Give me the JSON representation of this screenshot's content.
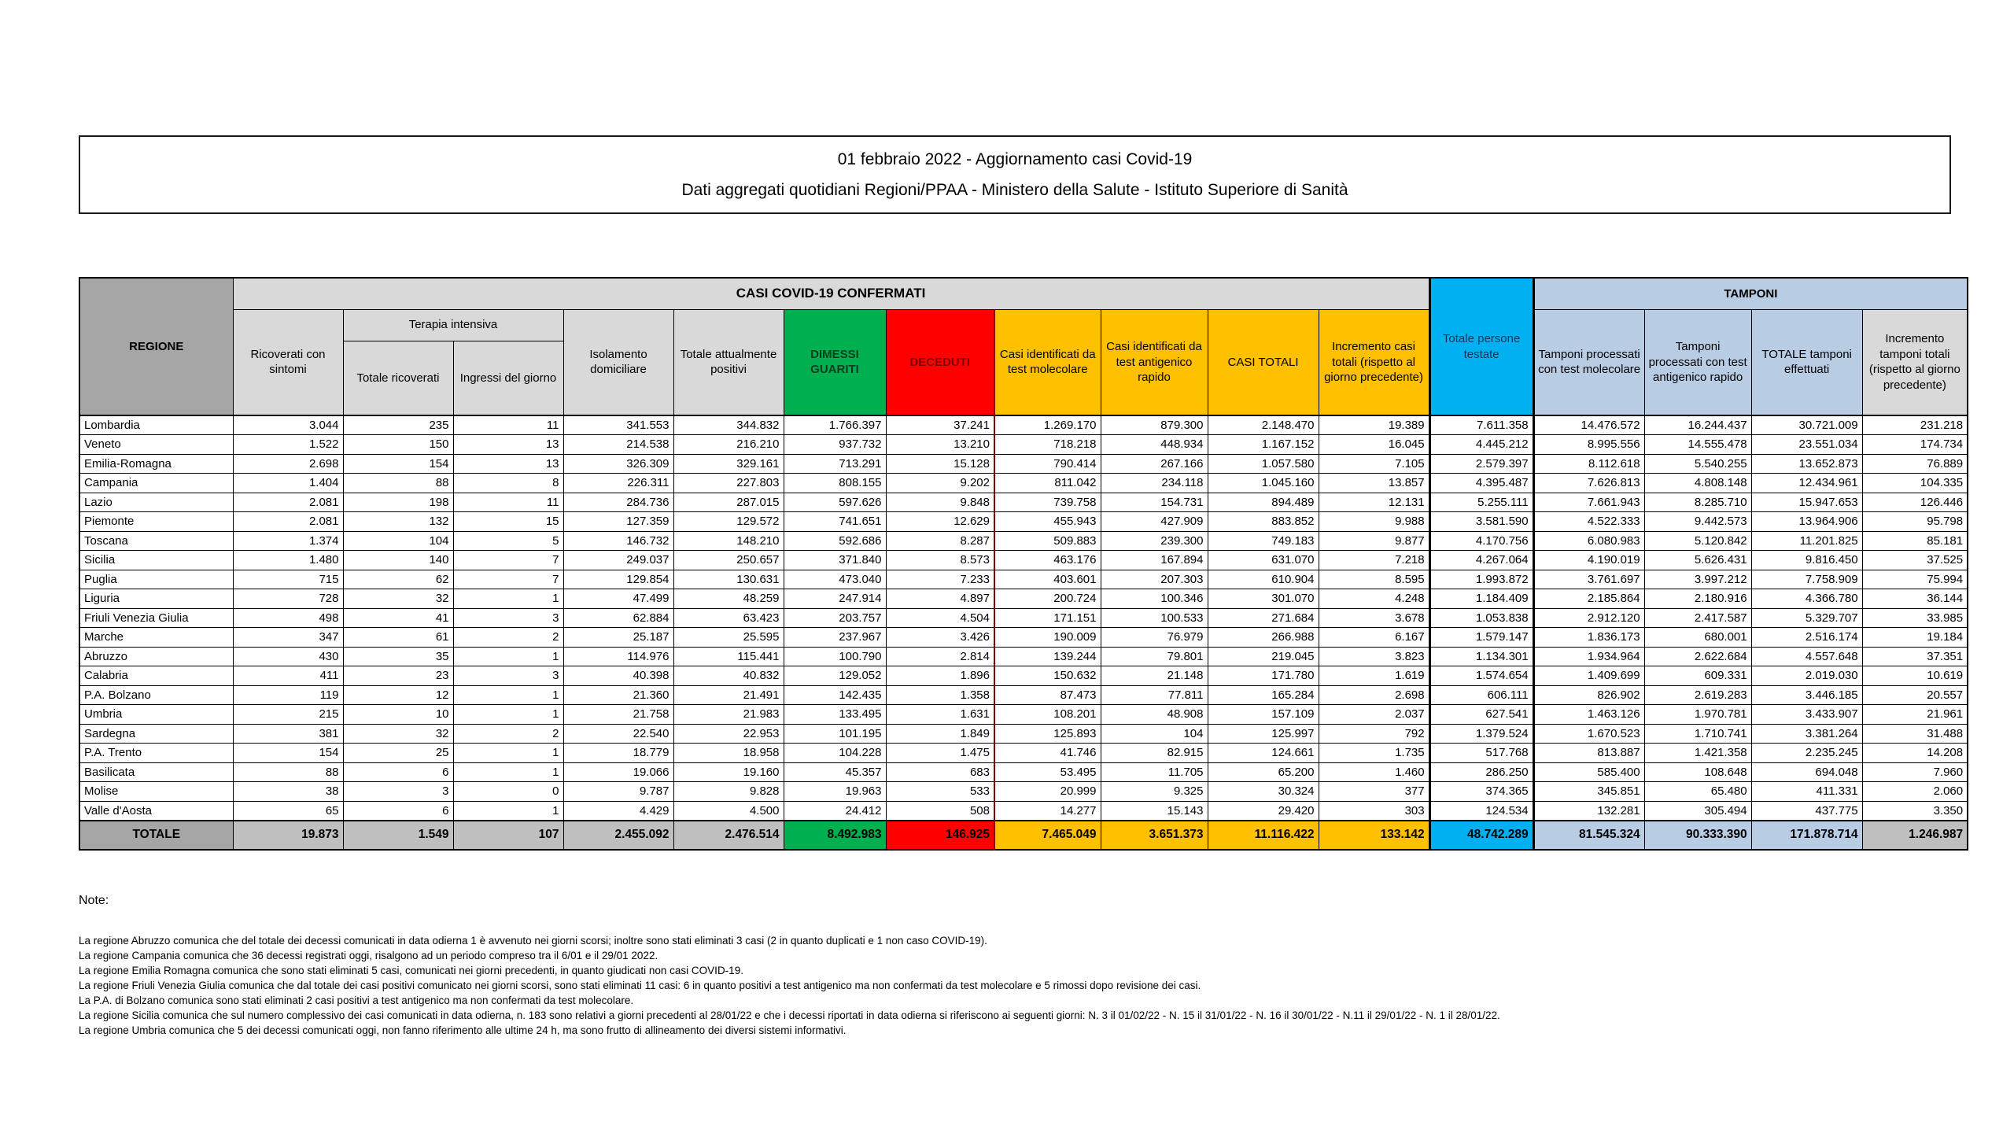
{
  "title": {
    "line1": "01 febbraio 2022 - Aggiornamento casi Covid-19",
    "line2": "Dati aggregati quotidiani Regioni/PPAA - Ministero della Salute - Istituto Superiore di Sanità"
  },
  "table": {
    "region_header": "REGIONE",
    "group_confirmed": "CASI COVID-19 CONFERMATI",
    "group_tamponi": "TAMPONI",
    "terapia_intensiva": "Terapia intensiva",
    "columns": {
      "ricoverati": "Ricoverati con sintomi",
      "totale_ricoverati": "Totale ricoverati",
      "ingressi": "Ingressi del giorno",
      "isolamento": "Isolamento domiciliare",
      "attualmente_positivi": "Totale attualmente positivi",
      "dimessi": "DIMESSI GUARITI",
      "deceduti": "DECEDUTI",
      "casi_molecolare": "Casi identificati da test molecolare",
      "casi_antigenico": "Casi identificati da test antigenico rapido",
      "casi_totali": "CASI TOTALI",
      "incremento_casi": "Incremento casi totali (rispetto al giorno precedente)",
      "persone_testate": "Totale persone testate",
      "tamponi_molecolare": "Tamponi processati con test molecolare",
      "tamponi_antigenico": "Tamponi processati con test antigenico rapido",
      "totale_tamponi": "TOTALE tamponi effettuati",
      "incremento_tamponi": "Incremento tamponi totali (rispetto al giorno precedente)"
    },
    "rows": [
      {
        "region": "Lombardia",
        "values": [
          "3.044",
          "235",
          "11",
          "341.553",
          "344.832",
          "1.766.397",
          "37.241",
          "1.269.170",
          "879.300",
          "2.148.470",
          "19.389",
          "7.611.358",
          "14.476.572",
          "16.244.437",
          "30.721.009",
          "231.218"
        ]
      },
      {
        "region": "Veneto",
        "values": [
          "1.522",
          "150",
          "13",
          "214.538",
          "216.210",
          "937.732",
          "13.210",
          "718.218",
          "448.934",
          "1.167.152",
          "16.045",
          "4.445.212",
          "8.995.556",
          "14.555.478",
          "23.551.034",
          "174.734"
        ]
      },
      {
        "region": "Emilia-Romagna",
        "values": [
          "2.698",
          "154",
          "13",
          "326.309",
          "329.161",
          "713.291",
          "15.128",
          "790.414",
          "267.166",
          "1.057.580",
          "7.105",
          "2.579.397",
          "8.112.618",
          "5.540.255",
          "13.652.873",
          "76.889"
        ]
      },
      {
        "region": "Campania",
        "values": [
          "1.404",
          "88",
          "8",
          "226.311",
          "227.803",
          "808.155",
          "9.202",
          "811.042",
          "234.118",
          "1.045.160",
          "13.857",
          "4.395.487",
          "7.626.813",
          "4.808.148",
          "12.434.961",
          "104.335"
        ]
      },
      {
        "region": "Lazio",
        "values": [
          "2.081",
          "198",
          "11",
          "284.736",
          "287.015",
          "597.626",
          "9.848",
          "739.758",
          "154.731",
          "894.489",
          "12.131",
          "5.255.111",
          "7.661.943",
          "8.285.710",
          "15.947.653",
          "126.446"
        ]
      },
      {
        "region": "Piemonte",
        "values": [
          "2.081",
          "132",
          "15",
          "127.359",
          "129.572",
          "741.651",
          "12.629",
          "455.943",
          "427.909",
          "883.852",
          "9.988",
          "3.581.590",
          "4.522.333",
          "9.442.573",
          "13.964.906",
          "95.798"
        ]
      },
      {
        "region": "Toscana",
        "values": [
          "1.374",
          "104",
          "5",
          "146.732",
          "148.210",
          "592.686",
          "8.287",
          "509.883",
          "239.300",
          "749.183",
          "9.877",
          "4.170.756",
          "6.080.983",
          "5.120.842",
          "11.201.825",
          "85.181"
        ]
      },
      {
        "region": "Sicilia",
        "values": [
          "1.480",
          "140",
          "7",
          "249.037",
          "250.657",
          "371.840",
          "8.573",
          "463.176",
          "167.894",
          "631.070",
          "7.218",
          "4.267.064",
          "4.190.019",
          "5.626.431",
          "9.816.450",
          "37.525"
        ]
      },
      {
        "region": "Puglia",
        "values": [
          "715",
          "62",
          "7",
          "129.854",
          "130.631",
          "473.040",
          "7.233",
          "403.601",
          "207.303",
          "610.904",
          "8.595",
          "1.993.872",
          "3.761.697",
          "3.997.212",
          "7.758.909",
          "75.994"
        ]
      },
      {
        "region": "Liguria",
        "values": [
          "728",
          "32",
          "1",
          "47.499",
          "48.259",
          "247.914",
          "4.897",
          "200.724",
          "100.346",
          "301.070",
          "4.248",
          "1.184.409",
          "2.185.864",
          "2.180.916",
          "4.366.780",
          "36.144"
        ]
      },
      {
        "region": "Friuli Venezia Giulia",
        "values": [
          "498",
          "41",
          "3",
          "62.884",
          "63.423",
          "203.757",
          "4.504",
          "171.151",
          "100.533",
          "271.684",
          "3.678",
          "1.053.838",
          "2.912.120",
          "2.417.587",
          "5.329.707",
          "33.985"
        ]
      },
      {
        "region": "Marche",
        "values": [
          "347",
          "61",
          "2",
          "25.187",
          "25.595",
          "237.967",
          "3.426",
          "190.009",
          "76.979",
          "266.988",
          "6.167",
          "1.579.147",
          "1.836.173",
          "680.001",
          "2.516.174",
          "19.184"
        ]
      },
      {
        "region": "Abruzzo",
        "values": [
          "430",
          "35",
          "1",
          "114.976",
          "115.441",
          "100.790",
          "2.814",
          "139.244",
          "79.801",
          "219.045",
          "3.823",
          "1.134.301",
          "1.934.964",
          "2.622.684",
          "4.557.648",
          "37.351"
        ]
      },
      {
        "region": "Calabria",
        "values": [
          "411",
          "23",
          "3",
          "40.398",
          "40.832",
          "129.052",
          "1.896",
          "150.632",
          "21.148",
          "171.780",
          "1.619",
          "1.574.654",
          "1.409.699",
          "609.331",
          "2.019.030",
          "10.619"
        ]
      },
      {
        "region": "P.A. Bolzano",
        "values": [
          "119",
          "12",
          "1",
          "21.360",
          "21.491",
          "142.435",
          "1.358",
          "87.473",
          "77.811",
          "165.284",
          "2.698",
          "606.111",
          "826.902",
          "2.619.283",
          "3.446.185",
          "20.557"
        ]
      },
      {
        "region": "Umbria",
        "values": [
          "215",
          "10",
          "1",
          "21.758",
          "21.983",
          "133.495",
          "1.631",
          "108.201",
          "48.908",
          "157.109",
          "2.037",
          "627.541",
          "1.463.126",
          "1.970.781",
          "3.433.907",
          "21.961"
        ]
      },
      {
        "region": "Sardegna",
        "values": [
          "381",
          "32",
          "2",
          "22.540",
          "22.953",
          "101.195",
          "1.849",
          "125.893",
          "104",
          "125.997",
          "792",
          "1.379.524",
          "1.670.523",
          "1.710.741",
          "3.381.264",
          "31.488"
        ]
      },
      {
        "region": "P.A. Trento",
        "values": [
          "154",
          "25",
          "1",
          "18.779",
          "18.958",
          "104.228",
          "1.475",
          "41.746",
          "82.915",
          "124.661",
          "1.735",
          "517.768",
          "813.887",
          "1.421.358",
          "2.235.245",
          "14.208"
        ]
      },
      {
        "region": "Basilicata",
        "values": [
          "88",
          "6",
          "1",
          "19.066",
          "19.160",
          "45.357",
          "683",
          "53.495",
          "11.705",
          "65.200",
          "1.460",
          "286.250",
          "585.400",
          "108.648",
          "694.048",
          "7.960"
        ]
      },
      {
        "region": "Molise",
        "values": [
          "38",
          "3",
          "0",
          "9.787",
          "9.828",
          "19.963",
          "533",
          "20.999",
          "9.325",
          "30.324",
          "377",
          "374.365",
          "345.851",
          "65.480",
          "411.331",
          "2.060"
        ]
      },
      {
        "region": "Valle d'Aosta",
        "values": [
          "65",
          "6",
          "1",
          "4.429",
          "4.500",
          "24.412",
          "508",
          "14.277",
          "15.143",
          "29.420",
          "303",
          "124.534",
          "132.281",
          "305.494",
          "437.775",
          "3.350"
        ]
      }
    ],
    "total_row": {
      "label": "TOTALE",
      "values": [
        "19.873",
        "1.549",
        "107",
        "2.455.092",
        "2.476.514",
        "8.492.983",
        "146.925",
        "7.465.049",
        "3.651.373",
        "11.116.422",
        "133.142",
        "48.742.289",
        "81.545.324",
        "90.333.390",
        "171.878.714",
        "1.246.987"
      ]
    }
  },
  "notes": {
    "heading": "Note:",
    "lines": [
      "La regione Abruzzo comunica che del totale dei decessi comunicati in data odierna 1 è avvenuto nei giorni scorsi; inoltre sono stati eliminati 3 casi (2 in quanto duplicati e 1 non caso COVID-19).",
      "La regione Campania comunica che 36 decessi registrati oggi, risalgono ad un periodo compreso tra il 6/01 e il 29/01 2022.",
      "La regione Emilia Romagna comunica che sono stati eliminati 5 casi, comunicati nei giorni precedenti, in quanto giudicati non casi COVID-19.",
      "La regione Friuli Venezia Giulia comunica che dal totale dei casi positivi comunicato nei giorni scorsi, sono stati eliminati 11 casi: 6 in quanto positivi a test antigenico ma non confermati da test molecolare e 5 rimossi dopo revisione dei casi.",
      "La P.A. di Bolzano comunica sono stati eliminati 2 casi positivi a test antigenico ma non confermati da test molecolare.",
      "La regione Sicilia comunica che sul numero complessivo dei casi comunicati in data odierna, n. 183 sono relativi a giorni precedenti al 28/01/22 e che i decessi riportati in data odierna si riferiscono ai seguenti giorni: N. 3 il 01/02/22 - N. 15 il 31/01/22 - N. 16 il 30/01/22 - N.11 il 29/01/22 - N. 1 il 28/01/22.",
      "La regione Umbria comunica che 5 dei decessi comunicati oggi, non fanno riferimento alle ultime 24 h, ma sono frutto di allineamento dei diversi sistemi informativi."
    ]
  },
  "colors": {
    "green": "#00B050",
    "red": "#FF0000",
    "yellow": "#FFC000",
    "cyan": "#00B0F0",
    "light_blue": "#B8CCE4",
    "header_gray": "#A6A6A6",
    "band_gray": "#D9D9D9",
    "total_gray": "#BFBFBF",
    "deceduti_text": "#7F0000",
    "testate_text": "#17375E"
  }
}
